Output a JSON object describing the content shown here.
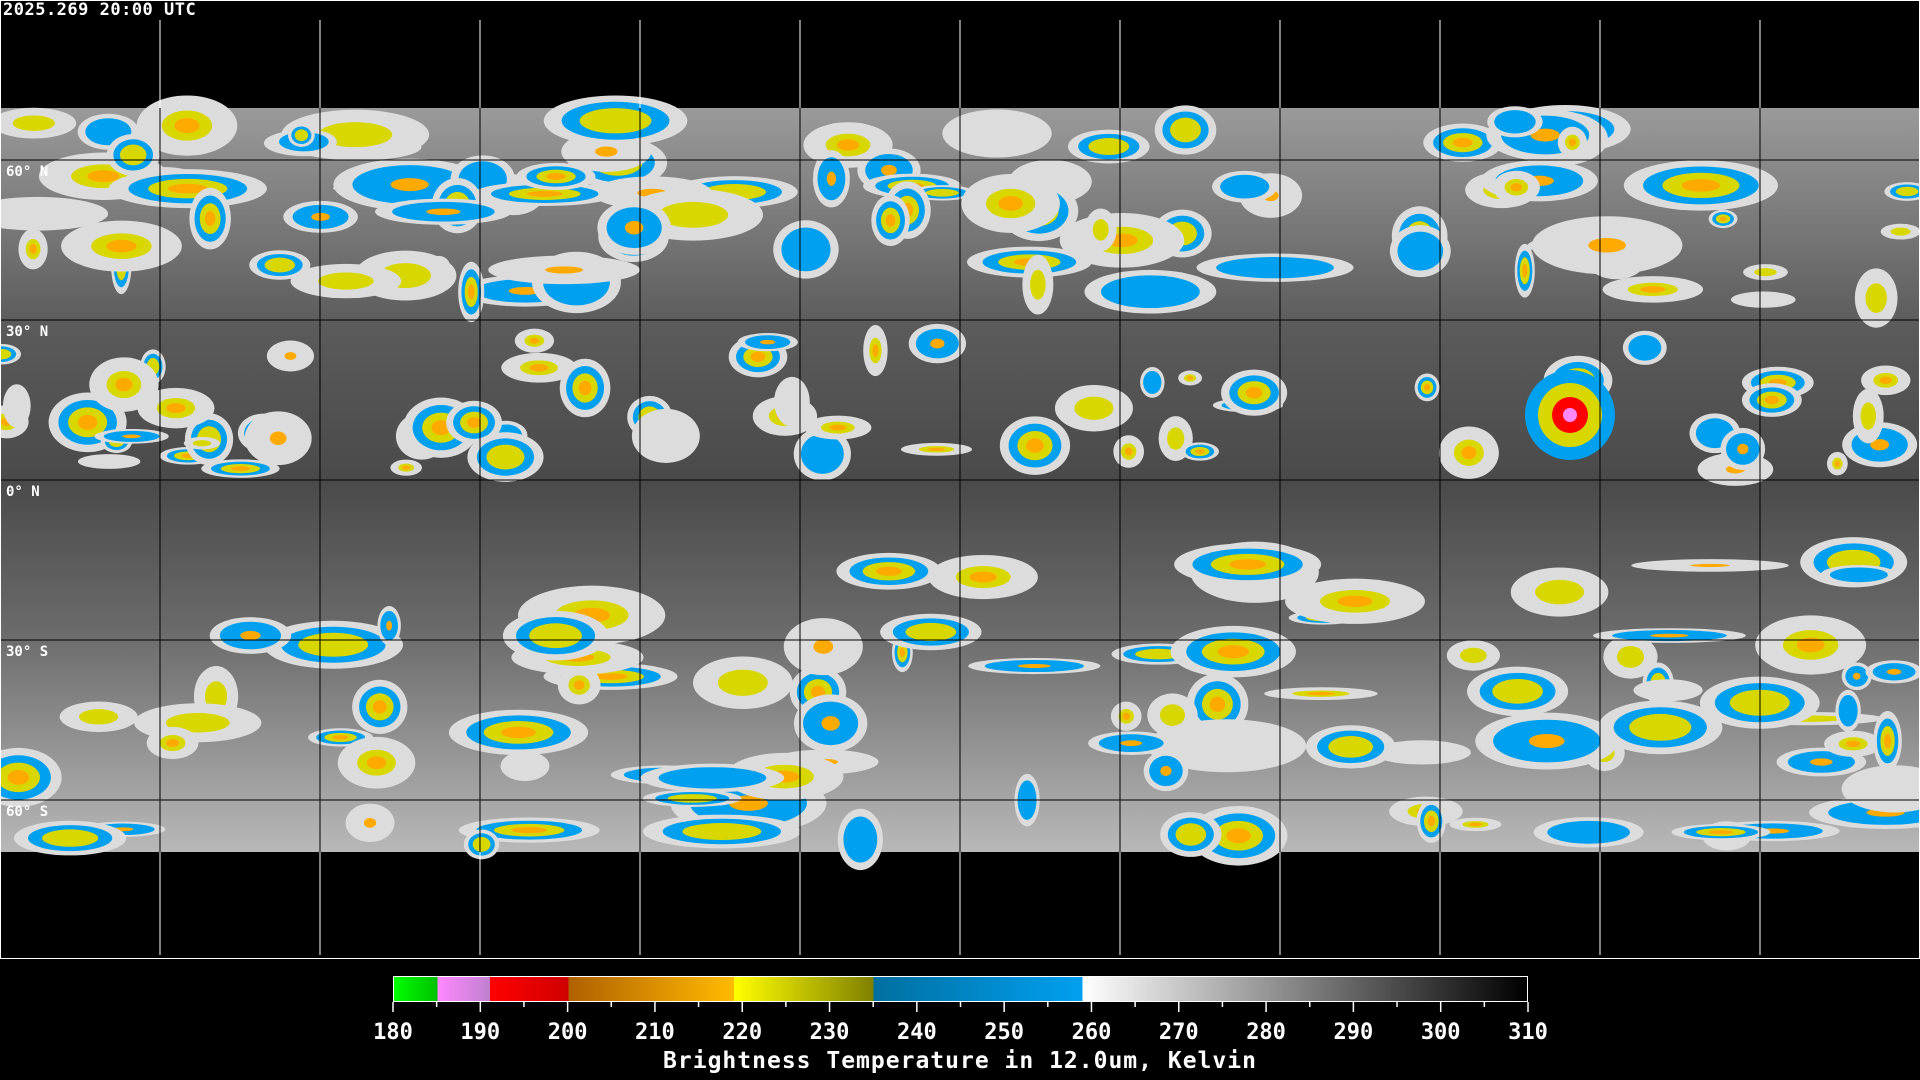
{
  "timestamp": "2025.269 20:00 UTC",
  "map": {
    "projection": "equirectangular",
    "lat_grid_deg": [
      60,
      30,
      0,
      -30,
      -60
    ],
    "lon_grid_count": 11,
    "lat_labels": [
      "60° N",
      "30° N",
      "0° N",
      "30° S",
      "60° S"
    ],
    "coastline_color": "#ffffff",
    "gridline_color": "#000000"
  },
  "colorbar": {
    "title": "Brightness Temperature in 12.0um, Kelvin",
    "min": 180,
    "max": 310,
    "tick_labels": [
      "180",
      "190",
      "200",
      "210",
      "220",
      "230",
      "240",
      "250",
      "260",
      "270",
      "280",
      "290",
      "300",
      "310"
    ],
    "segments": [
      {
        "from": 180,
        "to": 185,
        "start": "#00ff00",
        "end": "#00c000"
      },
      {
        "from": 185,
        "to": 191,
        "start": "#ff88ff",
        "end": "#c080d0"
      },
      {
        "from": 191,
        "to": 200,
        "start": "#ff0000",
        "end": "#d00000"
      },
      {
        "from": 200,
        "to": 219,
        "start": "#b06000",
        "end": "#ffbb00"
      },
      {
        "from": 219,
        "to": 235,
        "start": "#ffff00",
        "end": "#808000"
      },
      {
        "from": 235,
        "to": 259,
        "start": "#006fa0",
        "end": "#00a0f0"
      },
      {
        "from": 259,
        "to": 310,
        "start": "#ffffff",
        "end": "#000000"
      }
    ]
  }
}
